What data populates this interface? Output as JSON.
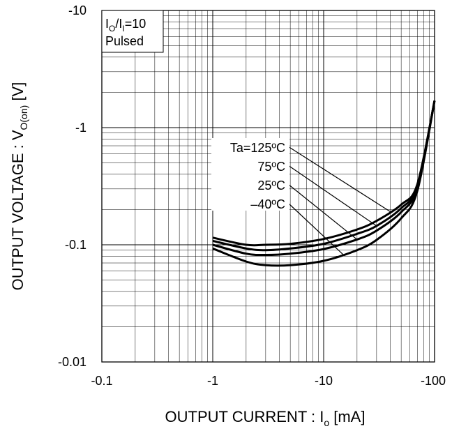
{
  "chart_data": {
    "type": "line",
    "x_scale": "log",
    "y_scale": "log",
    "xlim": [
      -0.1,
      -100
    ],
    "ylim": [
      -0.01,
      -10
    ],
    "x_ticks": [
      "-0.1",
      "-1",
      "-10",
      "-100"
    ],
    "y_ticks": [
      "-0.01",
      "-0.1",
      "-1",
      "-10"
    ],
    "xlabel": {
      "main": "OUTPUT CURRENT : I",
      "sub": "o",
      "unit": " [mA]"
    },
    "ylabel": {
      "main": "OUTPUT VOLTAGE : V",
      "sub": "O(on)",
      "unit": " [V]"
    },
    "conditions": {
      "line1_main": "I",
      "line1_sub1": "O",
      "line1_mid": "/I",
      "line1_sub2": "I",
      "line1_end": "=10",
      "line2": "Pulsed"
    },
    "grid": true,
    "x": [
      -1,
      -2,
      -3,
      -5,
      -10,
      -20,
      -30,
      -50,
      -70,
      -100
    ],
    "series": [
      {
        "name": "Ta=125ºC",
        "values": [
          -0.115,
          -0.1,
          -0.1,
          -0.102,
          -0.112,
          -0.135,
          -0.16,
          -0.22,
          -0.33,
          -1.7
        ]
      },
      {
        "name": "75ºC",
        "values": [
          -0.108,
          -0.093,
          -0.09,
          -0.093,
          -0.102,
          -0.124,
          -0.145,
          -0.205,
          -0.32,
          -1.7
        ]
      },
      {
        "name": "25ºC",
        "values": [
          -0.1,
          -0.084,
          -0.082,
          -0.084,
          -0.092,
          -0.111,
          -0.132,
          -0.19,
          -0.31,
          -1.7
        ]
      },
      {
        "name": "-40ºC",
        "values": [
          -0.093,
          -0.072,
          -0.067,
          -0.067,
          -0.073,
          -0.09,
          -0.11,
          -0.168,
          -0.29,
          -1.7
        ]
      }
    ],
    "legend_labels": [
      "Ta=125ºC",
      "75ºC",
      "25ºC",
      "–40ºC"
    ]
  }
}
